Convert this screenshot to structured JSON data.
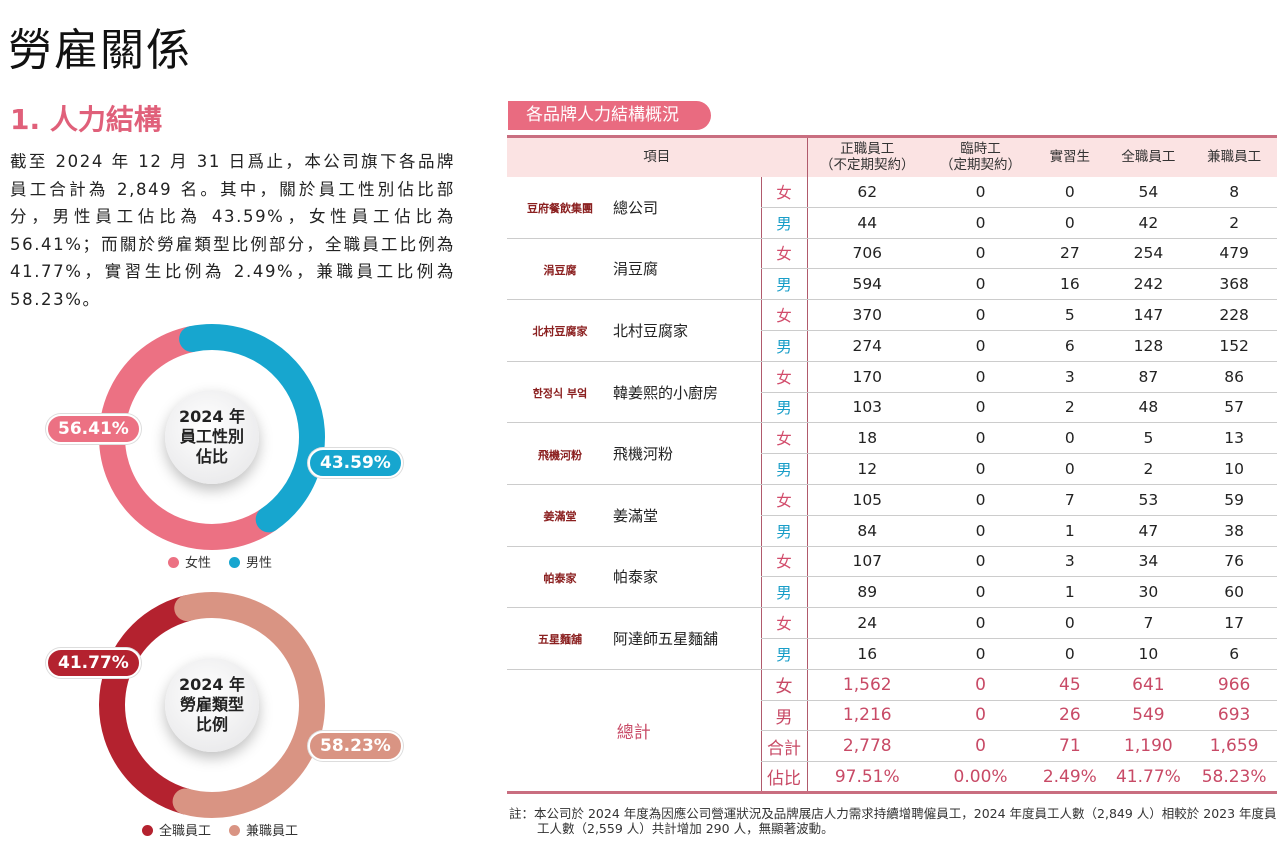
{
  "title": "勞雇關係",
  "section": "1. 人力結構",
  "paragraph": "截至 2024 年 12 月 31 日爲止，本公司旗下各品牌員工合計為 2,849 名。其中，關於員工性別佔比部分，男性員工佔比為 43.59%，女性員工佔比為 56.41%；而關於勞雇類型比例部分，全職員工比例為 41.77%，實習生比例為 2.49%，兼職員工比例為 58.23%。",
  "chart_data": [
    {
      "type": "pie",
      "title_lines": [
        "2024 年",
        "員工性別",
        "佔比"
      ],
      "labels": [
        "女性",
        "男性"
      ],
      "values": [
        56.41,
        43.59
      ],
      "value_labels": [
        "56.41%",
        "43.59%"
      ],
      "colors": [
        "#ec7183",
        "#17a6cf"
      ]
    },
    {
      "type": "pie",
      "title_lines": [
        "2024 年",
        "勞雇類型",
        "比例"
      ],
      "labels": [
        "全職員工",
        "兼職員工"
      ],
      "values": [
        41.77,
        58.23
      ],
      "value_labels": [
        "41.77%",
        "58.23%"
      ],
      "colors": [
        "#b4222f",
        "#d99483"
      ]
    }
  ],
  "table": {
    "title": "各品牌人力結構概況",
    "headers": [
      "項目",
      "正職員工\n（不定期契約）",
      "臨時工\n（定期契約）",
      "實習生",
      "全職員工",
      "兼職員工"
    ],
    "gender": [
      "女",
      "男"
    ],
    "brands": [
      {
        "name": "總公司",
        "logo": "豆府餐飲集團",
        "f": [
          "62",
          "0",
          "0",
          "54",
          "8"
        ],
        "m": [
          "44",
          "0",
          "0",
          "42",
          "2"
        ]
      },
      {
        "name": "涓豆腐",
        "logo": "涓豆腐",
        "f": [
          "706",
          "0",
          "27",
          "254",
          "479"
        ],
        "m": [
          "594",
          "0",
          "16",
          "242",
          "368"
        ]
      },
      {
        "name": "北村豆腐家",
        "logo": "北村豆腐家",
        "f": [
          "370",
          "0",
          "5",
          "147",
          "228"
        ],
        "m": [
          "274",
          "0",
          "6",
          "128",
          "152"
        ]
      },
      {
        "name": "韓姜熙的小廚房",
        "logo": "한정식 부엌",
        "f": [
          "170",
          "0",
          "3",
          "87",
          "86"
        ],
        "m": [
          "103",
          "0",
          "2",
          "48",
          "57"
        ]
      },
      {
        "name": "飛機河粉",
        "logo": "飛機河粉",
        "f": [
          "18",
          "0",
          "0",
          "5",
          "13"
        ],
        "m": [
          "12",
          "0",
          "0",
          "2",
          "10"
        ]
      },
      {
        "name": "姜滿堂",
        "logo": "姜滿堂",
        "f": [
          "105",
          "0",
          "7",
          "53",
          "59"
        ],
        "m": [
          "84",
          "0",
          "1",
          "47",
          "38"
        ]
      },
      {
        "name": "帕泰家",
        "logo": "帕泰家",
        "f": [
          "107",
          "0",
          "3",
          "34",
          "76"
        ],
        "m": [
          "89",
          "0",
          "1",
          "30",
          "60"
        ]
      },
      {
        "name": "阿達師五星麵舖",
        "logo": "五星麵舖",
        "f": [
          "24",
          "0",
          "0",
          "7",
          "17"
        ],
        "m": [
          "16",
          "0",
          "0",
          "10",
          "6"
        ]
      }
    ],
    "total_label": "總計",
    "totals": [
      {
        "label": "女",
        "values": [
          "1,562",
          "0",
          "45",
          "641",
          "966"
        ]
      },
      {
        "label": "男",
        "values": [
          "1,216",
          "0",
          "26",
          "549",
          "693"
        ]
      },
      {
        "label": "合計",
        "values": [
          "2,778",
          "0",
          "71",
          "1,190",
          "1,659"
        ]
      },
      {
        "label": "佔比",
        "values": [
          "97.51%",
          "0.00%",
          "2.49%",
          "41.77%",
          "58.23%"
        ]
      }
    ]
  },
  "note": "註：本公司於 2024 年度為因應公司營運狀況及品牌展店人力需求持續增聘僱員工，2024 年度員工人數（2,849 人）相較於 2023 年度員工人數（2,559 人）共計增加 290 人，無顯著波動。"
}
